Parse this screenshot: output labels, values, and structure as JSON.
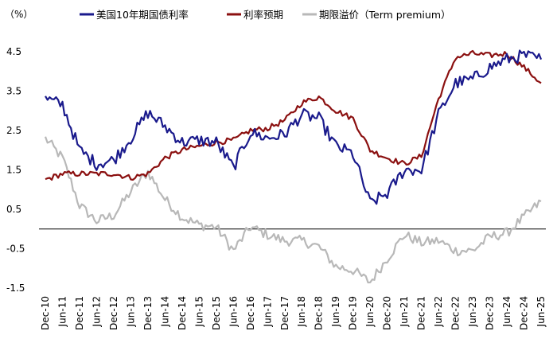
{
  "chart_data": {
    "type": "line",
    "unit_label": "（%）",
    "ylim": [
      -1.5,
      5.0
    ],
    "yticks": [
      4.5,
      3.5,
      2.5,
      1.5,
      0.5,
      -0.5,
      -1.5
    ],
    "ytick_labels": [
      "4.5",
      "3.5",
      "2.5",
      "1.5",
      "0.5",
      "-0.5",
      "-1.5"
    ],
    "x_categories": [
      "Dec-10",
      "Jun-11",
      "Dec-11",
      "Jun-12",
      "Dec-12",
      "Jun-13",
      "Dec-13",
      "Jun-14",
      "Dec-14",
      "Jun-15",
      "Dec-15",
      "Jun-16",
      "Dec-16",
      "Jun-17",
      "Dec-17",
      "Jun-18",
      "Dec-18",
      "Jun-19",
      "Dec-19",
      "Jun-20",
      "Dec-20",
      "Jun-21",
      "Dec-21",
      "Jun-22",
      "Dec-22",
      "Jun-23",
      "Dec-23",
      "Jun-24",
      "Dec-24",
      "Jun-25"
    ],
    "zero_line": true,
    "series": [
      {
        "name": "美国10年期国债利率",
        "color": "#1a1a8c",
        "values": [
          3.3,
          3.15,
          2.0,
          1.65,
          1.75,
          2.3,
          2.95,
          2.6,
          2.2,
          2.25,
          2.2,
          1.55,
          2.45,
          2.3,
          2.4,
          2.9,
          2.8,
          2.1,
          1.9,
          0.65,
          0.9,
          1.5,
          1.5,
          2.9,
          3.7,
          3.8,
          4.1,
          4.3,
          4.4,
          4.3
        ]
      },
      {
        "name": "利率预期",
        "color": "#8b1010",
        "values": [
          1.25,
          1.4,
          1.4,
          1.4,
          1.4,
          1.3,
          1.4,
          1.8,
          2.0,
          2.1,
          2.2,
          2.25,
          2.5,
          2.55,
          2.75,
          3.2,
          3.35,
          3.0,
          2.8,
          2.0,
          1.8,
          1.65,
          1.85,
          3.3,
          4.35,
          4.45,
          4.4,
          4.45,
          4.1,
          3.7
        ]
      },
      {
        "name": "期限溢价（Term premium）",
        "color": "#b8b8b8",
        "values": [
          2.3,
          1.8,
          0.6,
          0.2,
          0.35,
          0.95,
          1.45,
          0.75,
          0.3,
          0.1,
          0.05,
          -0.55,
          0.05,
          -0.15,
          -0.3,
          -0.3,
          -0.45,
          -0.95,
          -1.05,
          -1.35,
          -0.75,
          -0.15,
          -0.35,
          -0.3,
          -0.55,
          -0.55,
          -0.2,
          -0.1,
          0.3,
          0.7
        ]
      }
    ]
  }
}
